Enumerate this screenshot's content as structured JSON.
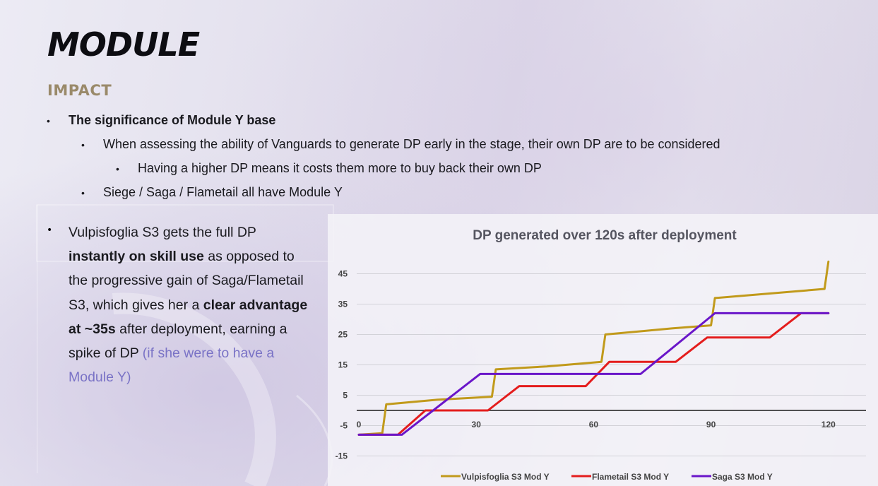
{
  "slide": {
    "title": "MODULE",
    "subtitle": "IMPACT"
  },
  "bullets": {
    "b1": "The significance of Module Y base",
    "b1_1": "When assessing the ability of Vanguards to generate DP early in the stage, their own DP are to be considered",
    "b1_1_1": "Having a higher DP means it costs them more to buy back their own DP",
    "b1_2": "Siege / Saga / Flametail all have Module Y",
    "b2": {
      "t1": "Vulpisfoglia S3 gets the full DP",
      "t2_bold": "instantly on skill use",
      "t2_rest": " as opposed to the progressive gain of Saga/Flametail S3, which gives her a ",
      "t3_bold": "clear advantage at ~35s",
      "t3_rest": " after deployment, earning a spike of DP ",
      "t4_muted": "(if she were to have a Module Y)"
    }
  },
  "colors": {
    "vulpisfoglia": "#c19a1b",
    "flametail": "#e41d1d",
    "saga": "#6a16c9",
    "grid": "#d2d2d8",
    "zero_axis": "#1a1a1a"
  },
  "chart_data": {
    "type": "line",
    "title": "DP generated over 120s after deployment",
    "xlabel": "",
    "ylabel": "",
    "xlim": [
      -2,
      125
    ],
    "ylim": [
      -17,
      51
    ],
    "x_ticks": [
      0,
      30,
      60,
      90,
      120
    ],
    "y_ticks": [
      45,
      35,
      25,
      15,
      5,
      -5,
      -15
    ],
    "grid": true,
    "legend": "bottom",
    "series": [
      {
        "name": "Vulpisfoglia S3 Mod Y",
        "color": "#c19a1b",
        "points": [
          [
            0,
            -8
          ],
          [
            6,
            -7.5
          ],
          [
            7,
            2
          ],
          [
            20,
            3.5
          ],
          [
            34,
            4.5
          ],
          [
            35,
            13.5
          ],
          [
            48,
            14.5
          ],
          [
            62,
            16
          ],
          [
            63,
            25
          ],
          [
            80,
            27
          ],
          [
            90,
            28
          ],
          [
            91,
            37
          ],
          [
            105,
            38.5
          ],
          [
            119,
            40
          ],
          [
            120,
            49
          ]
        ]
      },
      {
        "name": "Flametail S3 Mod Y",
        "color": "#e41d1d",
        "points": [
          [
            0,
            -8
          ],
          [
            10,
            -8
          ],
          [
            17,
            0
          ],
          [
            33,
            0
          ],
          [
            41,
            8
          ],
          [
            58,
            8
          ],
          [
            64,
            16
          ],
          [
            81,
            16
          ],
          [
            89,
            24
          ],
          [
            105,
            24
          ],
          [
            113,
            32
          ],
          [
            120,
            32
          ]
        ]
      },
      {
        "name": "Saga S3 Mod Y",
        "color": "#6a16c9",
        "points": [
          [
            0,
            -8
          ],
          [
            11,
            -8
          ],
          [
            31,
            12
          ],
          [
            72,
            12
          ],
          [
            91,
            32
          ],
          [
            120,
            32
          ]
        ]
      }
    ]
  }
}
